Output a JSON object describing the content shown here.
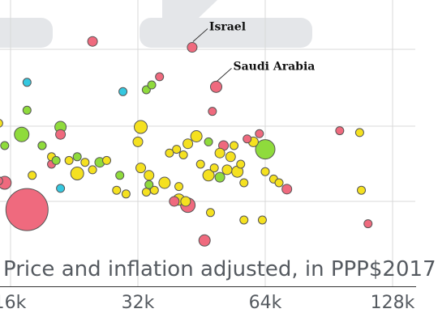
{
  "chart_data": {
    "type": "scatter",
    "title": "",
    "xlabel": "Price and inflation adjusted, in PPP$2017",
    "ylabel": "",
    "x_scale": "log2",
    "xlim": [
      13000,
      150000
    ],
    "x_ticks": [
      16000,
      32000,
      64000,
      128000
    ],
    "x_tick_labels": [
      "16k",
      "32k",
      "64k",
      "128k"
    ],
    "y_gridlines": 4,
    "grid": true,
    "legend": "none",
    "colors": {
      "pink": "#ef6a7e",
      "yellow": "#f5e120",
      "green": "#8fdb3c",
      "cyan": "#35c8e0",
      "grid": "#d9d9d9",
      "outline": "#555555",
      "watermark": "#e4e6e9"
    },
    "annotations": [
      {
        "label": "Israel",
        "x": 43000,
        "y": 4.14
      },
      {
        "label": "Saudi Arabia",
        "x": 49000,
        "y": 3.08
      }
    ],
    "series": [
      {
        "color": "pink",
        "points": [
          {
            "x": 25000,
            "y": 4.3,
            "r": 6
          },
          {
            "x": 43000,
            "y": 4.14,
            "r": 6
          },
          {
            "x": 36000,
            "y": 3.35,
            "r": 5
          },
          {
            "x": 49000,
            "y": 3.08,
            "r": 7
          },
          {
            "x": 48000,
            "y": 2.42,
            "r": 5
          },
          {
            "x": 21000,
            "y": 1.8,
            "r": 6
          },
          {
            "x": 17500,
            "y": -0.22,
            "r": 26
          },
          {
            "x": 15500,
            "y": 0.5,
            "r": 8
          },
          {
            "x": 15000,
            "y": 0.55,
            "r": 5
          },
          {
            "x": 42000,
            "y": -0.1,
            "r": 9
          },
          {
            "x": 46000,
            "y": -1.05,
            "r": 7
          },
          {
            "x": 51000,
            "y": 1.5,
            "r": 6
          },
          {
            "x": 58000,
            "y": 1.68,
            "r": 5
          },
          {
            "x": 62000,
            "y": 1.82,
            "r": 5
          },
          {
            "x": 72000,
            "y": 0.33,
            "r": 6
          },
          {
            "x": 96000,
            "y": 1.9,
            "r": 5
          },
          {
            "x": 112000,
            "y": -0.6,
            "r": 5
          },
          {
            "x": 39000,
            "y": 0.0,
            "r": 6
          },
          {
            "x": 20000,
            "y": 1.0,
            "r": 5
          }
        ]
      },
      {
        "color": "yellow",
        "points": [
          {
            "x": 15000,
            "y": 2.1,
            "r": 5
          },
          {
            "x": 14000,
            "y": 0.3,
            "r": 5
          },
          {
            "x": 14500,
            "y": 0.3,
            "r": 4
          },
          {
            "x": 32500,
            "y": 2.0,
            "r": 8
          },
          {
            "x": 32000,
            "y": 1.6,
            "r": 6
          },
          {
            "x": 32500,
            "y": 0.9,
            "r": 6
          },
          {
            "x": 34000,
            "y": 0.7,
            "r": 6
          },
          {
            "x": 35000,
            "y": 0.3,
            "r": 5
          },
          {
            "x": 33500,
            "y": 0.25,
            "r": 5
          },
          {
            "x": 37000,
            "y": 0.5,
            "r": 7
          },
          {
            "x": 30000,
            "y": 0.2,
            "r": 5
          },
          {
            "x": 38000,
            "y": 1.3,
            "r": 5
          },
          {
            "x": 39500,
            "y": 1.4,
            "r": 5
          },
          {
            "x": 40000,
            "y": 0.4,
            "r": 5
          },
          {
            "x": 41000,
            "y": 1.25,
            "r": 5
          },
          {
            "x": 42000,
            "y": 1.55,
            "r": 6
          },
          {
            "x": 44000,
            "y": 1.75,
            "r": 7
          },
          {
            "x": 45000,
            "y": 1.0,
            "r": 5
          },
          {
            "x": 47000,
            "y": 0.7,
            "r": 7
          },
          {
            "x": 48500,
            "y": 0.9,
            "r": 5
          },
          {
            "x": 50000,
            "y": 1.3,
            "r": 6
          },
          {
            "x": 52000,
            "y": 0.85,
            "r": 6
          },
          {
            "x": 53000,
            "y": 1.2,
            "r": 6
          },
          {
            "x": 54000,
            "y": 1.5,
            "r": 5
          },
          {
            "x": 55000,
            "y": 0.8,
            "r": 7
          },
          {
            "x": 56000,
            "y": 1.0,
            "r": 5
          },
          {
            "x": 57000,
            "y": 0.5,
            "r": 5
          },
          {
            "x": 60000,
            "y": 1.6,
            "r": 6
          },
          {
            "x": 64000,
            "y": 0.8,
            "r": 5
          },
          {
            "x": 67000,
            "y": 0.6,
            "r": 5
          },
          {
            "x": 69000,
            "y": 0.5,
            "r": 5
          },
          {
            "x": 40000,
            "y": 0.05,
            "r": 7
          },
          {
            "x": 41500,
            "y": 0.0,
            "r": 6
          },
          {
            "x": 47500,
            "y": -0.3,
            "r": 5
          },
          {
            "x": 57000,
            "y": -0.5,
            "r": 5
          },
          {
            "x": 63000,
            "y": -0.5,
            "r": 5
          },
          {
            "x": 107000,
            "y": 1.85,
            "r": 5
          },
          {
            "x": 108000,
            "y": 0.3,
            "r": 5
          },
          {
            "x": 18000,
            "y": 0.7,
            "r": 5
          },
          {
            "x": 19000,
            "y": 1.5,
            "r": 5
          },
          {
            "x": 20000,
            "y": 1.2,
            "r": 5
          },
          {
            "x": 22000,
            "y": 1.1,
            "r": 5
          },
          {
            "x": 23000,
            "y": 0.75,
            "r": 8
          },
          {
            "x": 24000,
            "y": 1.05,
            "r": 5
          },
          {
            "x": 25000,
            "y": 0.85,
            "r": 5
          },
          {
            "x": 27000,
            "y": 1.1,
            "r": 5
          },
          {
            "x": 28500,
            "y": 0.3,
            "r": 5
          }
        ]
      },
      {
        "color": "green",
        "points": [
          {
            "x": 14000,
            "y": 3.05,
            "r": 5
          },
          {
            "x": 14000,
            "y": 2.25,
            "r": 5
          },
          {
            "x": 17500,
            "y": 2.45,
            "r": 5
          },
          {
            "x": 17000,
            "y": 1.8,
            "r": 9
          },
          {
            "x": 21000,
            "y": 2.0,
            "r": 7
          },
          {
            "x": 14000,
            "y": 1.45,
            "r": 7
          },
          {
            "x": 15500,
            "y": 1.5,
            "r": 5
          },
          {
            "x": 13800,
            "y": 1.25,
            "r": 7
          },
          {
            "x": 19000,
            "y": 1.5,
            "r": 5
          },
          {
            "x": 20500,
            "y": 1.1,
            "r": 5
          },
          {
            "x": 23000,
            "y": 1.2,
            "r": 5
          },
          {
            "x": 26000,
            "y": 1.05,
            "r": 6
          },
          {
            "x": 33500,
            "y": 3.0,
            "r": 5
          },
          {
            "x": 34500,
            "y": 3.13,
            "r": 5
          },
          {
            "x": 47000,
            "y": 1.6,
            "r": 5
          },
          {
            "x": 50000,
            "y": 0.65,
            "r": 6
          },
          {
            "x": 64000,
            "y": 1.4,
            "r": 12
          },
          {
            "x": 34000,
            "y": 0.45,
            "r": 5
          },
          {
            "x": 29000,
            "y": 0.7,
            "r": 5
          }
        ]
      },
      {
        "color": "cyan",
        "points": [
          {
            "x": 14000,
            "y": 3.9,
            "r": 5
          },
          {
            "x": 17500,
            "y": 3.2,
            "r": 5
          },
          {
            "x": 29500,
            "y": 2.95,
            "r": 5
          },
          {
            "x": 21000,
            "y": 0.35,
            "r": 5
          }
        ]
      }
    ]
  }
}
